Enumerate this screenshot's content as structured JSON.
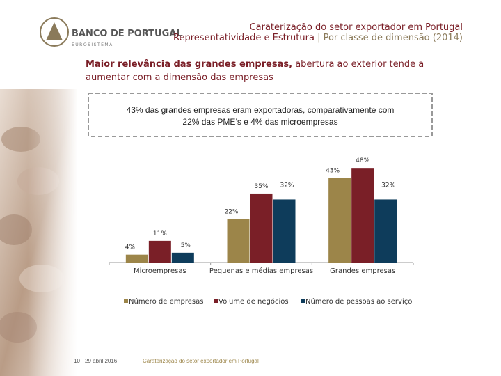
{
  "slide": {
    "logo_name": "BANCO DE PORTUGAL",
    "logo_sub": "EUROSISTEMA",
    "title": "Caraterização do setor exportador em Portugal",
    "subtitle_bold": "Representatividade e Estrutura",
    "subtitle_rest": "| Por classe de dimensão (2014)",
    "headline_bold": "Maior relevância das grandes empresas,",
    "headline_rest": "abertura ao exterior tende a aumentar com a dimensão das empresas",
    "callout": "43% das grandes empresas eram exportadoras, comparativamente com 22% das PME’s e 4% das microempresas",
    "page_number": "10",
    "date": "29 abril 2016",
    "footer": "Caraterização do setor exportador em Portugal"
  },
  "chart_data": {
    "type": "bar",
    "categories": [
      "Microempresas",
      "Pequenas e médias empresas",
      "Grandes empresas"
    ],
    "series": [
      {
        "name": "Número de empresas",
        "color": "#9c8549",
        "values": [
          4,
          22,
          43
        ],
        "value_labels": [
          "4%",
          "22%",
          "43%"
        ]
      },
      {
        "name": "Volume de negócios",
        "color": "#7a1f27",
        "values": [
          11,
          35,
          48
        ],
        "value_labels": [
          "11%",
          "35%",
          "48%"
        ]
      },
      {
        "name": "Número de pessoas ao serviço",
        "color": "#0e3c5b",
        "values": [
          5,
          32,
          32
        ],
        "value_labels": [
          "5%",
          "32%",
          "32%"
        ]
      }
    ]
  }
}
